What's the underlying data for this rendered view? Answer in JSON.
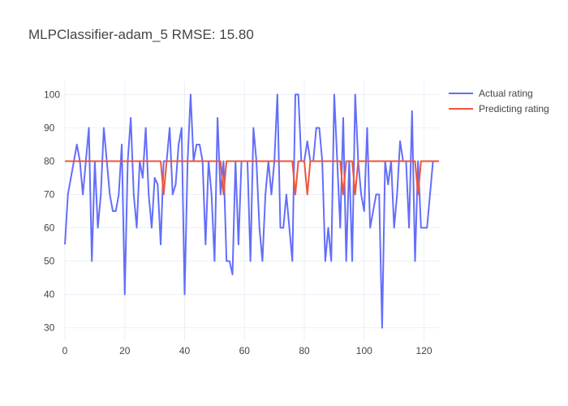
{
  "chart_data": {
    "type": "line",
    "title": "MLPClassifier-adam_5 RMSE: 15.80",
    "xlabel": "",
    "ylabel": "",
    "xlim": [
      0,
      125
    ],
    "ylim": [
      26,
      104
    ],
    "x_ticks": [
      0,
      20,
      40,
      60,
      80,
      100,
      120
    ],
    "y_ticks": [
      30,
      40,
      50,
      60,
      70,
      80,
      90,
      100
    ],
    "grid": true,
    "legend_position": "top-right",
    "series": [
      {
        "name": "Actual rating",
        "color": "#636efa",
        "x": [
          0,
          1,
          2,
          3,
          4,
          5,
          6,
          7,
          8,
          9,
          10,
          11,
          12,
          13,
          14,
          15,
          16,
          17,
          18,
          19,
          20,
          21,
          22,
          23,
          24,
          25,
          26,
          27,
          28,
          29,
          30,
          31,
          32,
          33,
          34,
          35,
          36,
          37,
          38,
          39,
          40,
          41,
          42,
          43,
          44,
          45,
          46,
          47,
          48,
          49,
          50,
          51,
          52,
          53,
          54,
          55,
          56,
          57,
          58,
          59,
          60,
          61,
          62,
          63,
          64,
          65,
          66,
          67,
          68,
          69,
          70,
          71,
          72,
          73,
          74,
          75,
          76,
          77,
          78,
          79,
          80,
          81,
          82,
          83,
          84,
          85,
          86,
          87,
          88,
          89,
          90,
          91,
          92,
          93,
          94,
          95,
          96,
          97,
          98,
          99,
          100,
          101,
          102,
          103,
          104,
          105,
          106,
          107,
          108,
          109,
          110,
          111,
          112,
          113,
          114,
          115,
          116,
          117,
          118,
          119,
          120,
          121,
          122,
          123,
          124,
          125
        ],
        "values": [
          55,
          70,
          75,
          80,
          85,
          80,
          70,
          80,
          90,
          50,
          80,
          60,
          70,
          90,
          80,
          70,
          65,
          65,
          70,
          85,
          40,
          80,
          93,
          70,
          60,
          80,
          75,
          90,
          70,
          60,
          75,
          73,
          55,
          80,
          80,
          90,
          70,
          73,
          85,
          90,
          40,
          80,
          100,
          80,
          85,
          85,
          80,
          55,
          80,
          70,
          50,
          93,
          70,
          80,
          50,
          50,
          46,
          80,
          55,
          80,
          80,
          80,
          50,
          90,
          80,
          60,
          50,
          70,
          80,
          70,
          80,
          100,
          60,
          60,
          70,
          60,
          50,
          100,
          100,
          80,
          80,
          86,
          80,
          80,
          90,
          90,
          80,
          50,
          60,
          50,
          100,
          80,
          60,
          93,
          50,
          80,
          50,
          100,
          80,
          70,
          65,
          90,
          60,
          65,
          70,
          70,
          30,
          80,
          73,
          80,
          60,
          70,
          86,
          80,
          80,
          60,
          95,
          50,
          80,
          60,
          60,
          60,
          70,
          80,
          80,
          80
        ]
      },
      {
        "name": "Predicting rating",
        "color": "#ef553b",
        "x": [
          0,
          32,
          33,
          34,
          52,
          53,
          54,
          76,
          77,
          78,
          80,
          81,
          82,
          92,
          93,
          94,
          96,
          97,
          98,
          117,
          118,
          119,
          125
        ],
        "values": [
          80,
          80,
          70,
          80,
          80,
          70,
          80,
          80,
          70,
          80,
          80,
          70,
          80,
          80,
          70,
          80,
          80,
          70,
          80,
          80,
          70,
          80,
          80
        ]
      }
    ]
  }
}
